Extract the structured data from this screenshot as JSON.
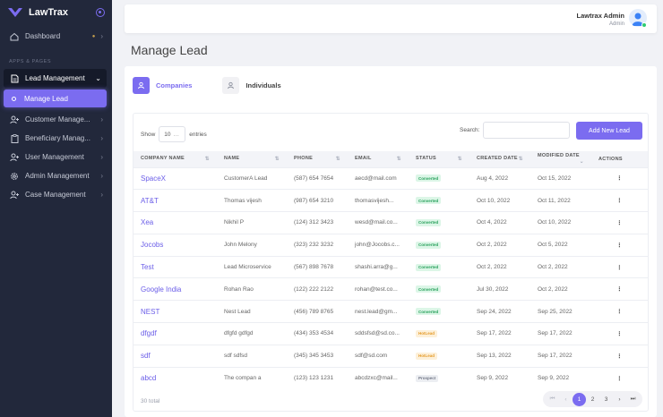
{
  "brand": {
    "name": "LawTrax"
  },
  "sidebar": {
    "dashboard": "Dashboard",
    "section_title": "APPS & PAGES",
    "lead_management": "Lead Management",
    "manage_lead": "Manage Lead",
    "items": [
      {
        "label": "Customer Manage...",
        "icon": "user-plus-icon"
      },
      {
        "label": "Beneficiary Manag...",
        "icon": "clipboard-icon"
      },
      {
        "label": "User Management",
        "icon": "user-plus-icon"
      },
      {
        "label": "Admin Management",
        "icon": "gear-icon"
      },
      {
        "label": "Case Management",
        "icon": "user-plus-icon"
      }
    ]
  },
  "header": {
    "user_name": "Lawtrax Admin",
    "user_role": "Admin"
  },
  "page": {
    "title": "Manage Lead"
  },
  "tabs": {
    "companies": "Companies",
    "individuals": "Individuals"
  },
  "controls": {
    "show_label": "Show",
    "entries_value": "10",
    "entries_label": "entries",
    "search_label": "Search:",
    "search_value": "",
    "add_button": "Add New Lead"
  },
  "table": {
    "columns": [
      "COMPANY NAME",
      "NAME",
      "PHONE",
      "EMAIL",
      "STATUS",
      "CREATED DATE",
      "MODIFIED DATE",
      "ACTIONS"
    ],
    "rows": [
      {
        "company": "SpaceX",
        "name": "CustomerA Lead",
        "phone": "(587) 654 7654",
        "email": "aecd@mail.com",
        "status": "Converted",
        "created": "Aug 4, 2022",
        "modified": "Oct 15, 2022",
        "action": "⋮"
      },
      {
        "company": "AT&T",
        "name": "Thomas vijesh",
        "phone": "(987) 654 3210",
        "email": "thomasvijesh...",
        "status": "Converted",
        "created": "Oct 10, 2022",
        "modified": "Oct 11, 2022",
        "action": "⋮"
      },
      {
        "company": "Xea",
        "name": "Nikhil P",
        "phone": "(124) 312 3423",
        "email": "wesd@mail.co...",
        "status": "Converted",
        "created": "Oct 4, 2022",
        "modified": "Oct 10, 2022",
        "action": "⋮"
      },
      {
        "company": "Jocobs",
        "name": "John Melony",
        "phone": "(323) 232 3232",
        "email": "john@Jocobs.c...",
        "status": "Converted",
        "created": "Oct 2, 2022",
        "modified": "Oct 5, 2022",
        "action": "⋮"
      },
      {
        "company": "Test",
        "name": "Lead Microservice",
        "phone": "(567) 898 7678",
        "email": "shashi.arra@g...",
        "status": "Converted",
        "created": "Oct 2, 2022",
        "modified": "Oct 2, 2022",
        "action": "⋮"
      },
      {
        "company": "Google India",
        "name": "Rohan Rao",
        "phone": "(122) 222 2122",
        "email": "rohan@test.co...",
        "status": "Converted",
        "created": "Jul 30, 2022",
        "modified": "Oct 2, 2022",
        "action": "⋮"
      },
      {
        "company": "NEST",
        "name": "Nest Lead",
        "phone": "(456) 789 8765",
        "email": "nest.lead@gm...",
        "status": "Converted",
        "created": "Sep 24, 2022",
        "modified": "Sep 25, 2022",
        "action": "⋮"
      },
      {
        "company": "dfgdf",
        "name": "dfgfd gdfgd",
        "phone": "(434) 353 4534",
        "email": "sddsfsd@sd.co...",
        "status": "HotLead",
        "created": "Sep 17, 2022",
        "modified": "Sep 17, 2022",
        "action": "⋮"
      },
      {
        "company": "sdf",
        "name": "sdf sdfsd",
        "phone": "(345) 345 3453",
        "email": "sdf@sd.com",
        "status": "HotLead",
        "created": "Sep 13, 2022",
        "modified": "Sep 17, 2022",
        "action": "⋮"
      },
      {
        "company": "abcd",
        "name": "The compan a",
        "phone": "(123) 123 1231",
        "email": "abcdzxc@mail...",
        "status": "Prospect",
        "created": "Sep 9, 2022",
        "modified": "Sep 9, 2022",
        "action": "⋮"
      }
    ]
  },
  "footer": {
    "total": "30 total",
    "pagination": {
      "first": "⏮",
      "prev": "‹",
      "pages": [
        "1",
        "2",
        "3"
      ],
      "next": "›",
      "last": "⏭",
      "current": "1"
    }
  },
  "colors": {
    "accent": "#7b6cf0",
    "sidebar": "#22283b",
    "converted": "#28a05b",
    "hotlead": "#e49a28",
    "prospect": "#727786"
  }
}
